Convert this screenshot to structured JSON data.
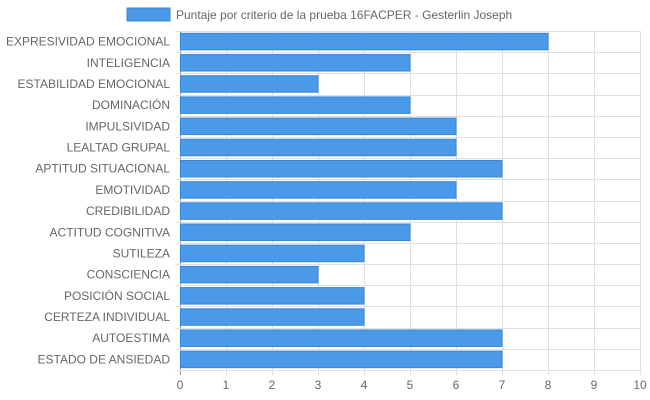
{
  "chart_data": {
    "type": "bar",
    "orientation": "horizontal",
    "legend": {
      "label": "Puntaje por criterio de la prueba 16FACPER - Gesterlin Joseph",
      "position": "top"
    },
    "categories": [
      "EXPRESIVIDAD EMOCIONAL",
      "INTELIGENCIA",
      "ESTABILIDAD EMOCIONAL",
      "DOMINACIÓN",
      "IMPULSIVIDAD",
      "LEALTAD GRUPAL",
      "APTITUD SITUACIONAL",
      "EMOTIVIDAD",
      "CREDIBILIDAD",
      "ACTITUD COGNITIVA",
      "SUTILEZA",
      "CONSCIENCIA",
      "POSICIÓN SOCIAL",
      "CERTEZA INDIVIDUAL",
      "AUTOESTIMA",
      "ESTADO DE ANSIEDAD"
    ],
    "series": [
      {
        "name": "Puntaje por criterio de la prueba 16FACPER - Gesterlin Joseph",
        "values": [
          8,
          5,
          3,
          5,
          6,
          6,
          7,
          6,
          7,
          5,
          4,
          3,
          4,
          4,
          7,
          7
        ]
      }
    ],
    "xlim": [
      0,
      10
    ],
    "xticks": [
      "0",
      "1",
      "2",
      "3",
      "4",
      "5",
      "6",
      "7",
      "8",
      "9",
      "10"
    ],
    "grid": true,
    "colors": {
      "bar_fill": "#4a9ae9",
      "bar_border": "#3a86d8",
      "grid": "#e0e0e0",
      "grid_strong": "#9a9a9a",
      "text": "#666666"
    }
  }
}
